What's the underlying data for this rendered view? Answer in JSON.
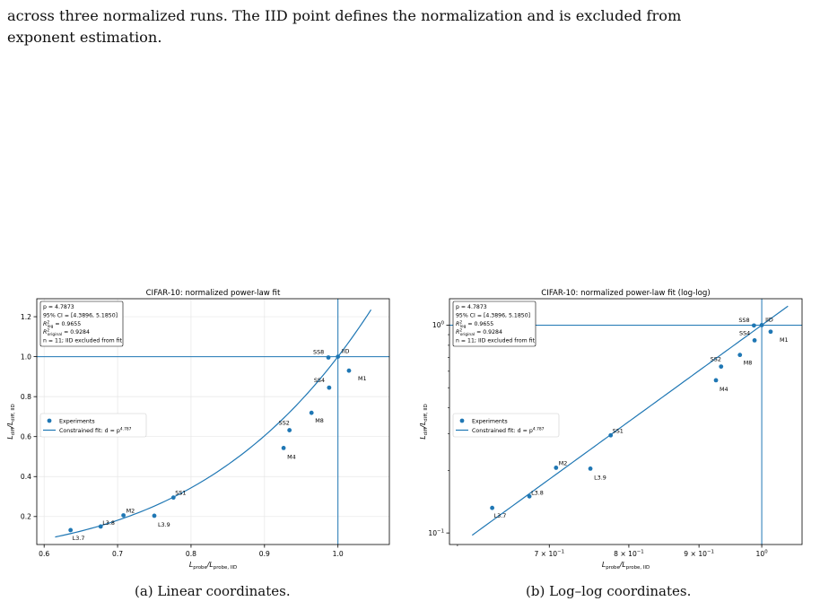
{
  "intro_text": {
    "line1": "across three normalized runs. The IID point defines the normalization and is excluded from",
    "line2": "exponent estimation."
  },
  "colors": {
    "series": "#1f77b4",
    "grid": "#e6e6e6",
    "axis": "#000000"
  },
  "captions": {
    "a": "(a) Linear coordinates.",
    "b": "(b) Log–log coordinates."
  },
  "stats_box": {
    "line1": "p = 4.7873",
    "line2": "95% CI = [4.3896, 5.1850]",
    "line3_base": "R",
    "line3_sub": "log",
    "line3_sup": "2",
    "line3_value": " = 0.9655",
    "line4_base": "R",
    "line4_sub": "original",
    "line4_sup": "2",
    "line4_value": " = 0.9284",
    "line5": "n = 11; IID excluded from fit"
  },
  "legend": {
    "points": "Experiments",
    "fit_prefix": "Constrained fit: d = p",
    "fit_exponent": "4.787"
  },
  "chart_data": [
    {
      "type": "scatter",
      "title": "CIFAR-10: normalized power-law fit",
      "xlabel": {
        "base": "L",
        "sub": "probe",
        "mid": "/L",
        "sub2": "probe, IID"
      },
      "ylabel": {
        "base": "L",
        "sub": "diff",
        "mid": "/L",
        "sub2": "diff, IID"
      },
      "xlim": [
        0.59,
        1.07
      ],
      "ylim": [
        0.06,
        1.29
      ],
      "x_ticks": [
        0.6,
        0.7,
        0.8,
        0.9,
        1.0
      ],
      "x_tick_labels": [
        "0.6",
        "0.7",
        "0.8",
        "0.9",
        "1.0"
      ],
      "y_ticks": [
        0.2,
        0.4,
        0.6,
        0.8,
        1.0,
        1.2
      ],
      "y_tick_labels": [
        "0.2",
        "0.4",
        "0.6",
        "0.8",
        "1.0",
        "1.2"
      ],
      "grid": true,
      "legend_position": "center-left",
      "reference_lines": {
        "x": 1.0,
        "y": 1.0
      },
      "fit": {
        "exponent": 4.7873,
        "x_range": [
          0.615,
          1.045
        ]
      },
      "points": [
        {
          "label": "L3.7",
          "x": 0.636,
          "y": 0.132
        },
        {
          "label": "L3.8",
          "x": 0.677,
          "y": 0.15
        },
        {
          "label": "M2",
          "x": 0.708,
          "y": 0.206
        },
        {
          "label": "L3.9",
          "x": 0.75,
          "y": 0.204
        },
        {
          "label": "SS1",
          "x": 0.776,
          "y": 0.295
        },
        {
          "label": "M4",
          "x": 0.926,
          "y": 0.543
        },
        {
          "label": "SS2",
          "x": 0.934,
          "y": 0.632
        },
        {
          "label": "M8",
          "x": 0.964,
          "y": 0.719
        },
        {
          "label": "SS4",
          "x": 0.988,
          "y": 0.845
        },
        {
          "label": "SS8",
          "x": 0.987,
          "y": 0.996
        },
        {
          "label": "IID",
          "x": 1.0,
          "y": 1.0
        },
        {
          "label": "M1",
          "x": 1.015,
          "y": 0.93
        }
      ]
    },
    {
      "type": "scatter",
      "title": "CIFAR-10: normalized power-law fit (log-log)",
      "scale": "log-log",
      "xlabel": {
        "base": "L",
        "sub": "probe",
        "mid": "/L",
        "sub2": "probe, IID"
      },
      "ylabel": {
        "base": "L",
        "sub": "diff",
        "mid": "/L",
        "sub2": "diff, IID"
      },
      "xlim": [
        0.592,
        1.07
      ],
      "ylim": [
        0.088,
        1.34
      ],
      "x_ticks": [
        0.7,
        0.8,
        0.9,
        1.0
      ],
      "x_tick_labels": [
        {
          "mant": "7 × 10",
          "exp": "−1"
        },
        {
          "mant": "8 × 10",
          "exp": "−1"
        },
        {
          "mant": "9 × 10",
          "exp": "−1"
        },
        {
          "mant": "10",
          "exp": "0"
        }
      ],
      "y_ticks": [
        0.1,
        1.0
      ],
      "y_tick_labels": [
        {
          "mant": "10",
          "exp": "−1"
        },
        {
          "mant": "10",
          "exp": "0"
        }
      ],
      "grid": false,
      "legend_position": "center-left",
      "reference_lines": {
        "x": 1.0,
        "y": 1.0
      },
      "fit": {
        "exponent": 4.7873,
        "x_range": [
          0.615,
          1.045
        ]
      },
      "points": [
        {
          "label": "L3.7",
          "x": 0.636,
          "y": 0.132
        },
        {
          "label": "L3.8",
          "x": 0.677,
          "y": 0.15
        },
        {
          "label": "M2",
          "x": 0.708,
          "y": 0.206
        },
        {
          "label": "L3.9",
          "x": 0.75,
          "y": 0.204
        },
        {
          "label": "SS1",
          "x": 0.776,
          "y": 0.295
        },
        {
          "label": "M4",
          "x": 0.926,
          "y": 0.543
        },
        {
          "label": "SS2",
          "x": 0.934,
          "y": 0.632
        },
        {
          "label": "M8",
          "x": 0.964,
          "y": 0.719
        },
        {
          "label": "SS4",
          "x": 0.988,
          "y": 0.845
        },
        {
          "label": "SS8",
          "x": 0.987,
          "y": 0.996
        },
        {
          "label": "IID",
          "x": 1.0,
          "y": 1.0
        },
        {
          "label": "M1",
          "x": 1.015,
          "y": 0.93
        }
      ]
    }
  ]
}
